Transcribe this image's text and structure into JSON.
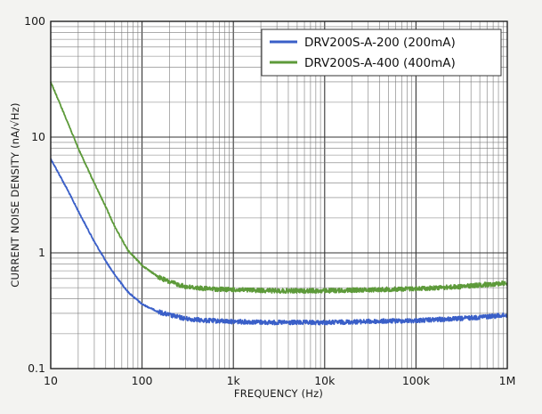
{
  "chart_data": {
    "type": "line",
    "title": "",
    "xlabel": "FREQUENCY (Hz)",
    "ylabel": "CURRENT NOISE DENSITY (nA/√Hz)",
    "x_scale": "log",
    "y_scale": "log",
    "xlim": [
      10,
      1000000
    ],
    "ylim": [
      0.1,
      100
    ],
    "x_tick_labels": [
      "10",
      "100",
      "1k",
      "10k",
      "100k",
      "1M"
    ],
    "y_tick_labels": [
      "0.1",
      "1",
      "10",
      "100"
    ],
    "grid": true,
    "legend_position": "top-right",
    "series": [
      {
        "name": "DRV200S-A-200 (200mA)",
        "color": "#3a5fc8",
        "x": [
          10,
          15,
          20,
          30,
          40,
          50,
          70,
          100,
          150,
          200,
          300,
          500,
          1000,
          3000,
          10000,
          30000,
          100000,
          300000,
          1000000
        ],
        "y": [
          6.5,
          3.6,
          2.3,
          1.25,
          0.85,
          0.65,
          0.46,
          0.36,
          0.31,
          0.29,
          0.27,
          0.26,
          0.255,
          0.25,
          0.25,
          0.255,
          0.26,
          0.27,
          0.29
        ]
      },
      {
        "name": "DRV200S-A-400 (400mA)",
        "color": "#5d9a3a",
        "x": [
          10,
          15,
          20,
          30,
          40,
          50,
          70,
          100,
          150,
          200,
          300,
          500,
          1000,
          3000,
          10000,
          30000,
          100000,
          300000,
          1000000
        ],
        "y": [
          30,
          14,
          8.0,
          4.0,
          2.5,
          1.7,
          1.05,
          0.78,
          0.62,
          0.56,
          0.51,
          0.49,
          0.48,
          0.47,
          0.47,
          0.48,
          0.49,
          0.51,
          0.55
        ]
      }
    ]
  }
}
